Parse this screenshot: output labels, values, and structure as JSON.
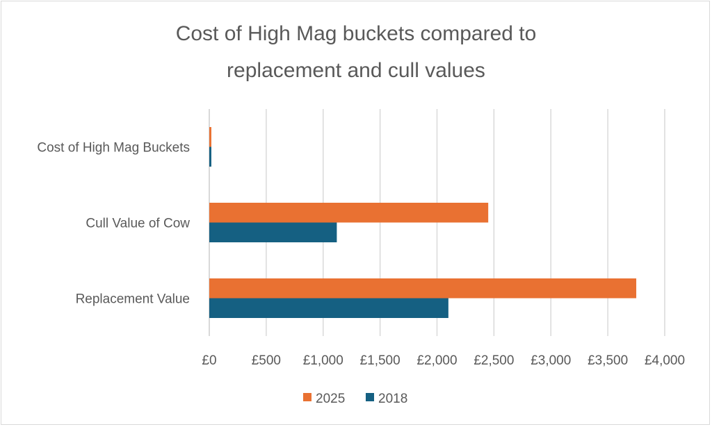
{
  "chart_data": {
    "type": "bar",
    "orientation": "horizontal",
    "title_lines": [
      "Cost of High Mag buckets compared to",
      "replacement and cull values"
    ],
    "categories": [
      "Cost of High Mag Buckets",
      "Cull Value of Cow",
      "Replacement Value"
    ],
    "series": [
      {
        "name": "2025",
        "color": "#E97132",
        "values": [
          18,
          2450,
          3750
        ]
      },
      {
        "name": "2018",
        "color": "#156082",
        "values": [
          18,
          1120,
          2100
        ]
      }
    ],
    "x_ticks": [
      "£0",
      "£500",
      "£1,000",
      "£1,500",
      "£2,000",
      "£2,500",
      "£3,000",
      "£3,500",
      "£4,000"
    ],
    "xlim": [
      0,
      4000
    ],
    "grid": true,
    "legend": "bottom",
    "xlabel": "",
    "ylabel": ""
  }
}
